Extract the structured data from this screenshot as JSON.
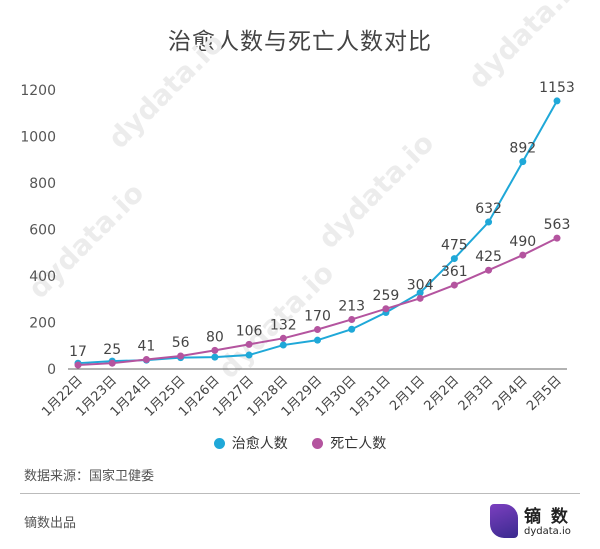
{
  "chart_data": {
    "type": "line",
    "title": "治愈人数与死亡人数对比",
    "categories": [
      "1月22日",
      "1月23日",
      "1月24日",
      "1月25日",
      "1月26日",
      "1月27日",
      "1月28日",
      "1月29日",
      "1月30日",
      "1月31日",
      "2月1日",
      "2月2日",
      "2月3日",
      "2月4日",
      "2月5日"
    ],
    "series": [
      {
        "name": "治愈人数",
        "color": "#1fa8d8",
        "values": [
          25,
          34,
          38,
          49,
          51,
          60,
          103,
          124,
          171,
          243,
          328,
          475,
          632,
          892,
          1153
        ]
      },
      {
        "name": "死亡人数",
        "color": "#b4549f",
        "values": [
          17,
          25,
          41,
          56,
          80,
          106,
          132,
          170,
          213,
          259,
          304,
          361,
          425,
          490,
          563
        ]
      }
    ],
    "labels": [
      {
        "series": 1,
        "index": 0,
        "text": "17"
      },
      {
        "series": 1,
        "index": 1,
        "text": "25"
      },
      {
        "series": 1,
        "index": 2,
        "text": "41"
      },
      {
        "series": 1,
        "index": 3,
        "text": "56"
      },
      {
        "series": 1,
        "index": 4,
        "text": "80"
      },
      {
        "series": 1,
        "index": 5,
        "text": "106"
      },
      {
        "series": 1,
        "index": 6,
        "text": "132"
      },
      {
        "series": 1,
        "index": 7,
        "text": "170"
      },
      {
        "series": 1,
        "index": 8,
        "text": "213"
      },
      {
        "series": 1,
        "index": 9,
        "text": "259"
      },
      {
        "series": 1,
        "index": 10,
        "text": "304"
      },
      {
        "series": 1,
        "index": 11,
        "text": "361"
      },
      {
        "series": 1,
        "index": 12,
        "text": "425"
      },
      {
        "series": 1,
        "index": 13,
        "text": "490"
      },
      {
        "series": 1,
        "index": 14,
        "text": "563"
      },
      {
        "series": 0,
        "index": 11,
        "text": "475"
      },
      {
        "series": 0,
        "index": 12,
        "text": "632"
      },
      {
        "series": 0,
        "index": 13,
        "text": "892"
      },
      {
        "series": 0,
        "index": 14,
        "text": "1153"
      }
    ],
    "ylim": [
      0,
      1200
    ],
    "yticks": [
      0,
      200,
      400,
      600,
      800,
      1000,
      1200
    ],
    "legend": "bottom",
    "grid": false
  },
  "footer": {
    "source": "数据来源：国家卫健委",
    "credit": "镝数出品",
    "logo_name": "镝 数",
    "logo_url": "dydata.io"
  },
  "watermark": "dydata.io"
}
